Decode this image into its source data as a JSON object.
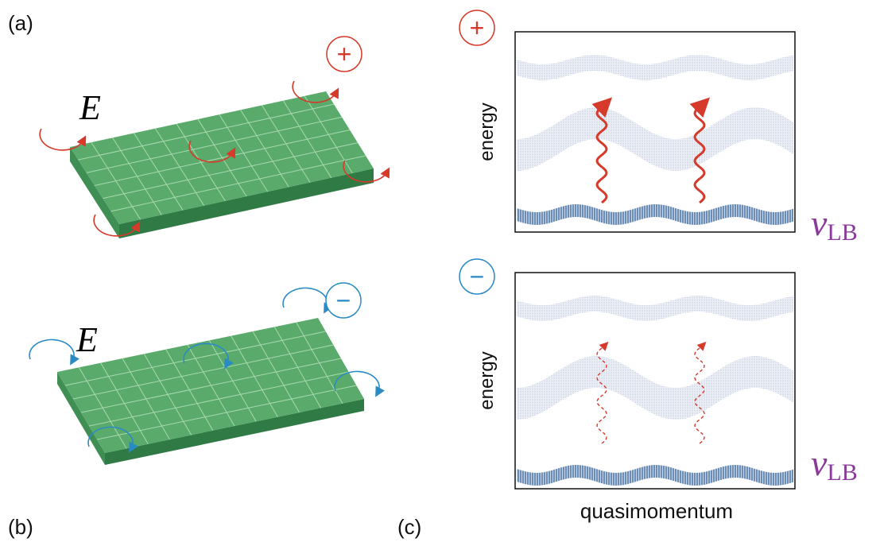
{
  "labels": {
    "a": "(a)",
    "b": "(b)",
    "c": "(c)"
  },
  "panel_a": {
    "field": "E",
    "sign": "+"
  },
  "panel_b": {
    "field": "E",
    "sign": "−"
  },
  "panel_c": {
    "top": {
      "sign": "+",
      "y_label": "energy",
      "band_label": {
        "symbol": "ν",
        "subscript": "LB"
      }
    },
    "bottom": {
      "sign": "−",
      "y_label": "energy",
      "band_label": {
        "symbol": "ν",
        "subscript": "LB"
      }
    },
    "x_label": "quasimomentum"
  }
}
